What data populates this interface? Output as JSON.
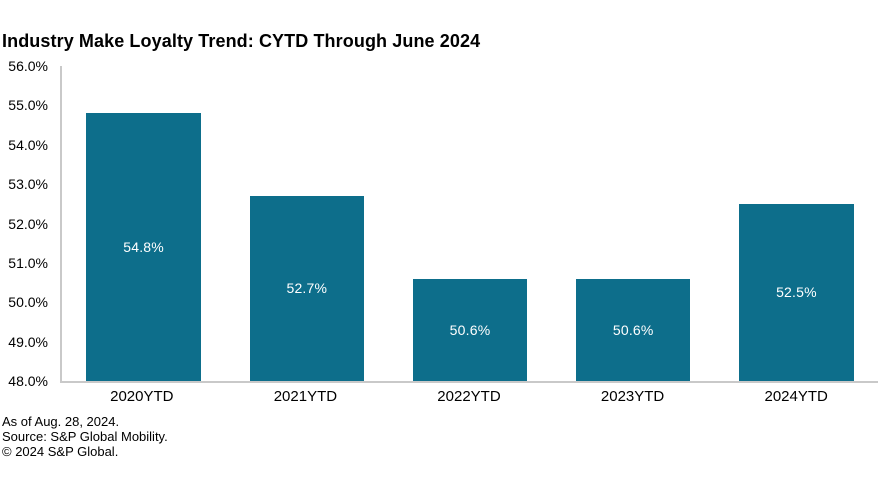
{
  "title": "Industry Make Loyalty Trend: CYTD Through June 2024",
  "chart_data": {
    "type": "bar",
    "categories": [
      "2020YTD",
      "2021YTD",
      "2022YTD",
      "2023YTD",
      "2024YTD"
    ],
    "values": [
      54.8,
      52.7,
      50.6,
      50.6,
      52.5
    ],
    "bar_labels": [
      "54.8%",
      "52.7%",
      "50.6%",
      "50.6%",
      "52.5%"
    ],
    "ylim": [
      48.0,
      56.0
    ],
    "y_tick_step": 1.0,
    "y_ticks": [
      "56.0%",
      "55.0%",
      "54.0%",
      "53.0%",
      "52.0%",
      "51.0%",
      "50.0%",
      "49.0%",
      "48.0%"
    ],
    "grid": false,
    "legend": "none",
    "bar_color": "#0D6E8B",
    "bar_label_color": "#FFFFFF",
    "axis_line_color": "#C9C9C9"
  },
  "footer": {
    "line1": "As of Aug. 28, 2024.",
    "line2": "Source: S&P Global Mobility.",
    "line3": "© 2024 S&P Global."
  }
}
